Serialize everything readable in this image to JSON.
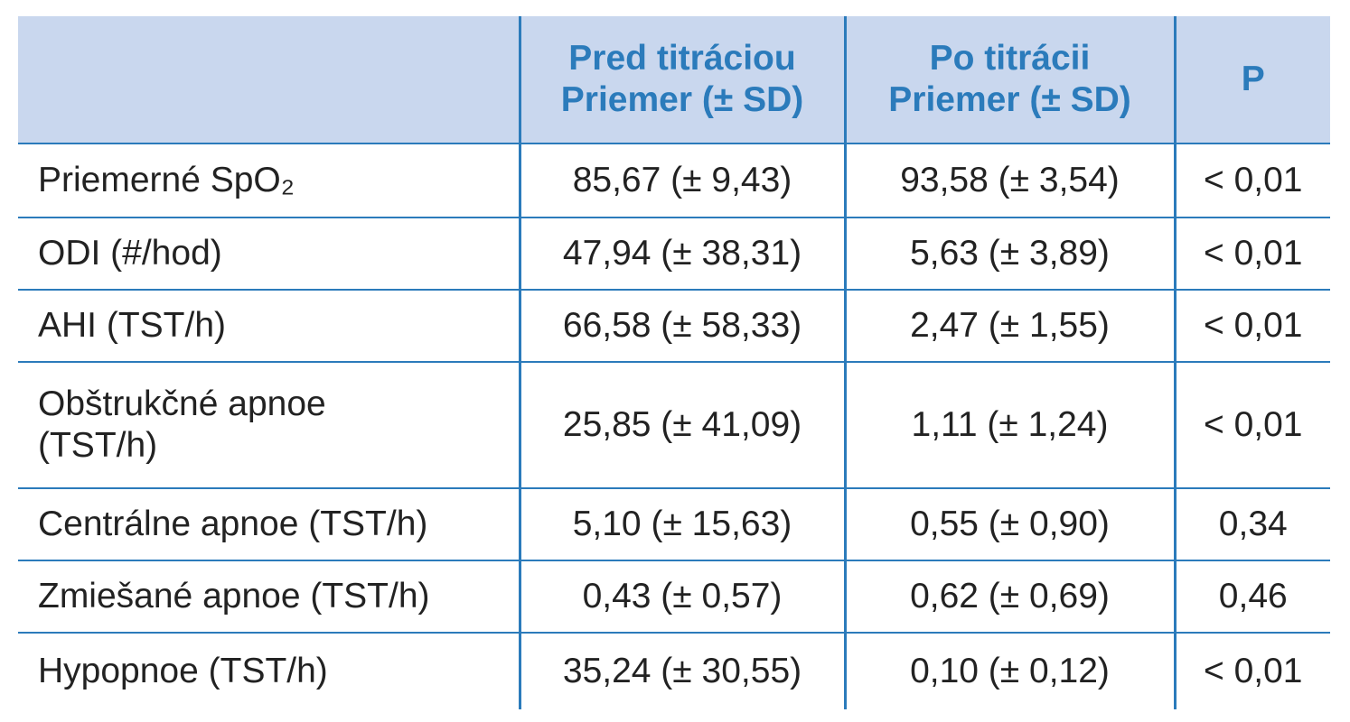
{
  "table": {
    "header": [
      {
        "lines": [
          "Pred titráciou",
          "Priemer (± SD)"
        ]
      },
      {
        "lines": [
          "Po titrácii",
          "Priemer (± SD)"
        ]
      },
      {
        "lines": [
          "P"
        ]
      }
    ],
    "rows": [
      {
        "label": [
          "Priemerné SpO₂"
        ],
        "cells": [
          "85,67 (± 9,43)",
          "93,58 (± 3,54)",
          "< 0,01"
        ]
      },
      {
        "label": [
          "ODI (#/hod)"
        ],
        "cells": [
          "47,94 (± 38,31)",
          "5,63 (± 3,89)",
          "< 0,01"
        ]
      },
      {
        "label": [
          "AHI (TST/h)"
        ],
        "cells": [
          "66,58 (± 58,33)",
          "2,47 (± 1,55)",
          "< 0,01"
        ]
      },
      {
        "label": [
          "Obštrukčné apnoe",
          "(TST/h)"
        ],
        "cells": [
          "25,85 (± 41,09)",
          "1,11 (± 1,24)",
          "< 0,01"
        ]
      },
      {
        "label": [
          "Centrálne apnoe (TST/h)"
        ],
        "cells": [
          "5,10 (± 15,63)",
          "0,55 (± 0,90)",
          "0,34"
        ]
      },
      {
        "label": [
          "Zmiešané apnoe (TST/h)"
        ],
        "cells": [
          "0,43 (± 0,57)",
          "0,62 (± 0,69)",
          "0,46"
        ]
      },
      {
        "label": [
          "Hypopnoe (TST/h)"
        ],
        "cells": [
          "35,24 (± 30,55)",
          "0,10 (± 0,12)",
          "< 0,01"
        ]
      }
    ]
  }
}
